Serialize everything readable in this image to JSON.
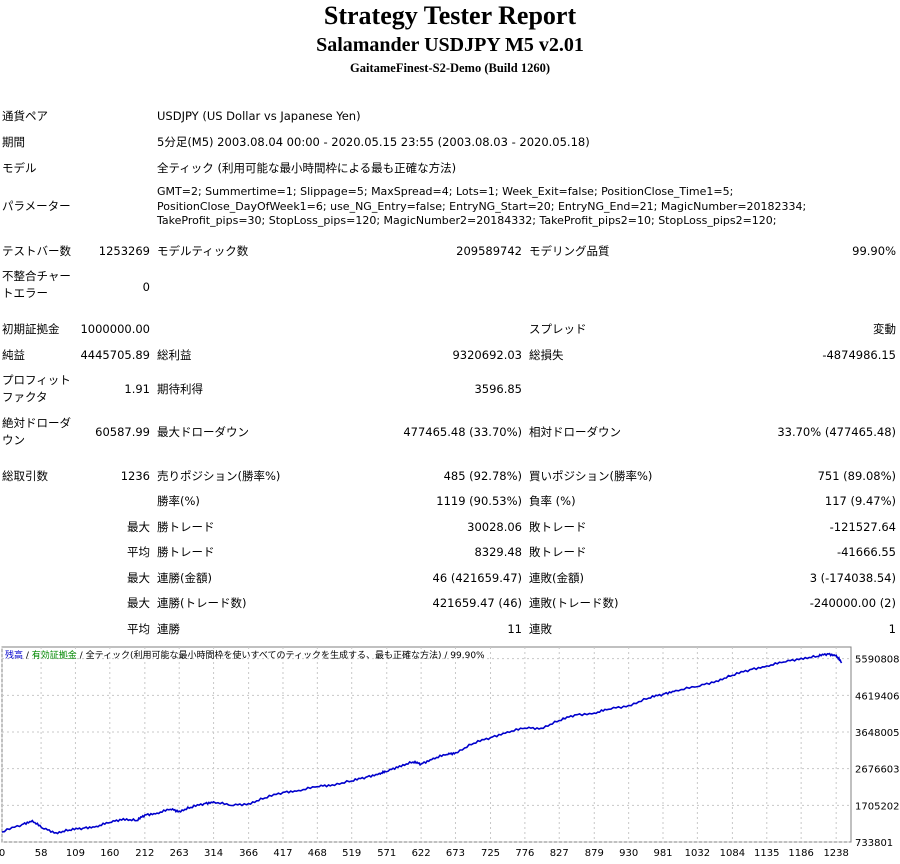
{
  "header": {
    "title": "Strategy Tester Report",
    "subtitle": "Salamander USDJPY M5 v2.01",
    "server": "GaitameFinest-S2-Demo (Build 1260)"
  },
  "info": {
    "symbol_label": "通貨ペア",
    "symbol_value": "USDJPY (US Dollar vs Japanese Yen)",
    "period_label": "期間",
    "period_value": "5分足(M5) 2003.08.04 00:00 - 2020.05.15 23:55 (2003.08.03 - 2020.05.18)",
    "model_label": "モデル",
    "model_value": "全ティック (利用可能な最小時間枠による最も正確な方法)",
    "params_label": "パラメーター",
    "params_value": "GMT=2; Summertime=1; Slippage=5; MaxSpread=4; Lots=1; Week_Exit=false; PositionClose_Time1=5; PositionClose_DayOfWeek1=6; use_NG_Entry=false; EntryNG_Start=20; EntryNG_End=21; MagicNumber=20182334; TakeProfit_pips=30; StopLoss_pips=120; MagicNumber2=20184332; TakeProfit_pips2=10; StopLoss_pips2=120;"
  },
  "stats": {
    "bars_label": "テストバー数",
    "bars_value": "1253269",
    "ticks_label": "モデルティック数",
    "ticks_value": "209589742",
    "quality_label": "モデリング品質",
    "quality_value": "99.90%",
    "mismatch_label": "不整合チャートエラー",
    "mismatch_value": "0",
    "deposit_label": "初期証拠金",
    "deposit_value": "1000000.00",
    "spread_label": "スプレッド",
    "spread_value": "変動",
    "net_label": "純益",
    "net_value": "4445705.89",
    "gross_profit_label": "総利益",
    "gross_profit_value": "9320692.03",
    "gross_loss_label": "総損失",
    "gross_loss_value": "-4874986.15",
    "pf_label": "プロフィットファクタ",
    "pf_value": "1.91",
    "payoff_label": "期待利得",
    "payoff_value": "3596.85",
    "abs_dd_label": "絶対ドローダウン",
    "abs_dd_value": "60587.99",
    "max_dd_label": "最大ドローダウン",
    "max_dd_value": "477465.48 (33.70%)",
    "rel_dd_label": "相対ドローダウン",
    "rel_dd_value": "33.70% (477465.48)",
    "trades_label": "総取引数",
    "trades_value": "1236",
    "short_label": "売りポジション(勝率%)",
    "short_value": "485 (92.78%)",
    "long_label": "買いポジション(勝率%)",
    "long_value": "751 (89.08%)",
    "win_rate_label": "勝率(%)",
    "win_rate_value": "1119 (90.53%)",
    "loss_rate_label": "負率 (%)",
    "loss_rate_value": "117 (9.47%)",
    "max1": "最大",
    "largest_win_label": "勝トレード",
    "largest_win_value": "30028.06",
    "largest_loss_label": "敗トレード",
    "largest_loss_value": "-121527.64",
    "avg1": "平均",
    "avg_win_label": "勝トレード",
    "avg_win_value": "8329.48",
    "avg_loss_label": "敗トレード",
    "avg_loss_value": "-41666.55",
    "max2": "最大",
    "cons_wins_label": "連勝(金額)",
    "cons_wins_value": "46 (421659.47)",
    "cons_losses_label": "連敗(金額)",
    "cons_losses_value": "3 (-174038.54)",
    "max3": "最大",
    "cons_profit_label": "連勝(トレード数)",
    "cons_profit_value": "421659.47 (46)",
    "cons_loss_label": "連敗(トレード数)",
    "cons_loss_value": "-240000.00 (2)",
    "avg2": "平均",
    "avg_cons_wins_label": "連勝",
    "avg_cons_wins_value": "11",
    "avg_cons_losses_label": "連敗",
    "avg_cons_losses_value": "1"
  },
  "chart_legend": {
    "balance": "残高",
    "sep1": " / ",
    "margin": "有効証拠金",
    "sep2": " / ",
    "model": "全ティック(利用可能な最小時間枠を使いすべてのティックを生成する、最も正確な方法)",
    "sep3": " / ",
    "quality": "99.90%",
    "balance_color": "#0000cc",
    "margin_color": "#008800"
  },
  "chart_data": {
    "type": "line",
    "title": "",
    "xlabel": "",
    "ylabel": "",
    "x_ticks": [
      "0",
      "58",
      "109",
      "160",
      "212",
      "263",
      "314",
      "366",
      "417",
      "468",
      "519",
      "571",
      "622",
      "673",
      "725",
      "776",
      "827",
      "879",
      "930",
      "981",
      "1032",
      "1084",
      "1135",
      "1186",
      "1238"
    ],
    "y_ticks": [
      "733801",
      "1705202",
      "2676603",
      "3648005",
      "4619406",
      "5590808"
    ],
    "xlim": [
      0,
      1260
    ],
    "ylim": [
      733801,
      5900000
    ],
    "grid": true,
    "series": [
      {
        "color": "#0000cc",
        "x": [
          0,
          30,
          45,
          60,
          80,
          100,
          120,
          140,
          160,
          180,
          200,
          212,
          230,
          250,
          263,
          280,
          300,
          314,
          340,
          366,
          390,
          417,
          440,
          468,
          490,
          519,
          540,
          560,
          571,
          590,
          610,
          622,
          640,
          660,
          673,
          700,
          725,
          750,
          776,
          800,
          827,
          850,
          879,
          900,
          930,
          960,
          981,
          1000,
          1032,
          1060,
          1084,
          1110,
          1135,
          1160,
          1186,
          1210,
          1225,
          1238,
          1246
        ],
        "y": [
          1000000,
          1200000,
          1300000,
          1100000,
          980000,
          1050000,
          1100000,
          1150000,
          1250000,
          1350000,
          1300000,
          1450000,
          1500000,
          1600000,
          1550000,
          1650000,
          1750000,
          1800000,
          1700000,
          1750000,
          1900000,
          2050000,
          2100000,
          2200000,
          2250000,
          2350000,
          2450000,
          2550000,
          2600000,
          2750000,
          2850000,
          2800000,
          2950000,
          3050000,
          3100000,
          3350000,
          3500000,
          3650000,
          3750000,
          3750000,
          3950000,
          4100000,
          4150000,
          4250000,
          4350000,
          4550000,
          4650000,
          4750000,
          4850000,
          5000000,
          5150000,
          5300000,
          5400000,
          5500000,
          5600000,
          5650000,
          5720000,
          5680000,
          5480000
        ]
      }
    ]
  }
}
